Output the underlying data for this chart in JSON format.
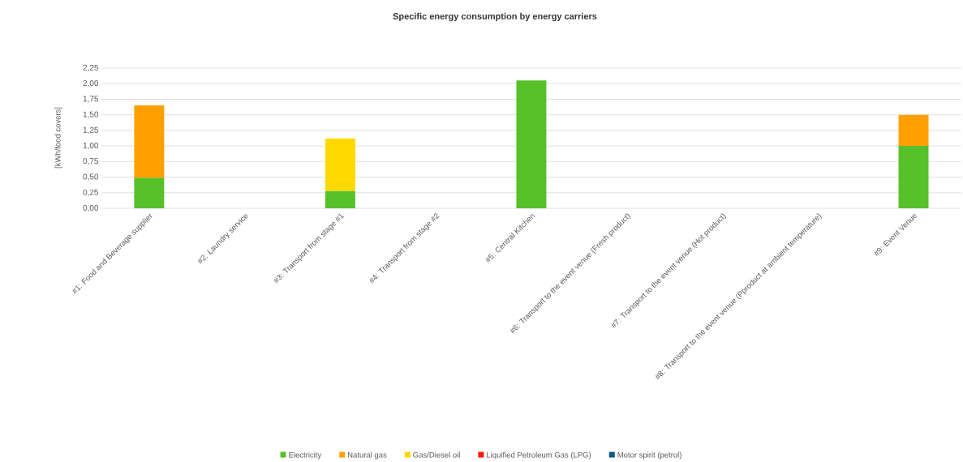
{
  "chart_data": {
    "type": "bar",
    "stacked": true,
    "title": "Specific energy consumption by energy carriers",
    "ylabel": "[kWh/food covers]",
    "categories": [
      "#1: Food and Beverage supplier",
      "#2: Laundry service",
      "#3: Transport from stage #1",
      "#4: Transport from stage #2",
      "#5: Central Kitchen",
      "#6: Transport to the event venue (Fresh product)",
      "#7: Transport to the event venue (Hot product)",
      "#8: Transport to the event venue (Pproduct at ambient temperature)",
      "#9: Event Venue"
    ],
    "series": [
      {
        "name": "Electricity",
        "color": "#57c12a",
        "values": [
          0.49,
          null,
          0.28,
          null,
          2.05,
          null,
          null,
          null,
          1.0
        ]
      },
      {
        "name": "Natural gas",
        "color": "#ffa000",
        "values": [
          1.16,
          null,
          null,
          null,
          null,
          null,
          null,
          null,
          0.5
        ]
      },
      {
        "name": "Gas/Diesel oil",
        "color": "#ffd900",
        "values": [
          null,
          null,
          0.84,
          null,
          null,
          null,
          null,
          null,
          null
        ]
      },
      {
        "name": "Liquified Petroleum Gas (LPG)",
        "color": "#ff1a00",
        "values": [
          null,
          null,
          null,
          null,
          null,
          null,
          null,
          null,
          null
        ]
      },
      {
        "name": "Motor spirit (petrol)",
        "color": "#0b5a84",
        "values": [
          null,
          null,
          null,
          null,
          null,
          null,
          null,
          null,
          null
        ]
      }
    ],
    "ylim": [
      0,
      2.25
    ],
    "yticks": [
      {
        "value": 0,
        "label": "0,00"
      },
      {
        "value": 0.25,
        "label": "0,25"
      },
      {
        "value": 0.5,
        "label": "0,50"
      },
      {
        "value": 0.75,
        "label": "0,75"
      },
      {
        "value": 1,
        "label": "1,00"
      },
      {
        "value": 1.25,
        "label": "1,25"
      },
      {
        "value": 1.5,
        "label": "1,50"
      },
      {
        "value": 1.75,
        "label": "1,75"
      },
      {
        "value": 2,
        "label": "2,00"
      },
      {
        "value": 2.25,
        "label": "2,25"
      }
    ],
    "grid": "y",
    "legend": "bottom"
  }
}
